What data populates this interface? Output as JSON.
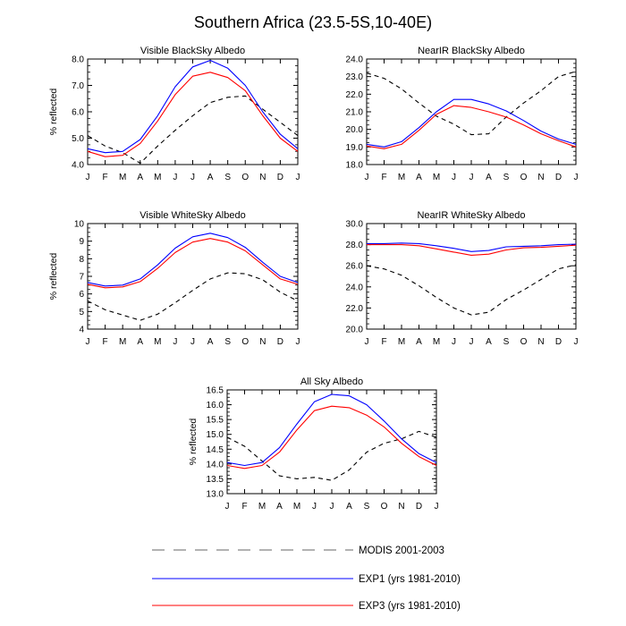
{
  "figure_title": "Southern Africa (23.5-5S,10-40E)",
  "legend": [
    {
      "label": "MODIS 2001-2003",
      "color": "#000000",
      "dash": "dashed"
    },
    {
      "label": "EXP1 (yrs 1981-2010)",
      "color": "#0000ff",
      "dash": "solid"
    },
    {
      "label": "EXP3 (yrs 1981-2010)",
      "color": "#ff0000",
      "dash": "solid"
    }
  ],
  "chart_data": [
    {
      "type": "line",
      "title": "Visible BlackSky Albedo",
      "ylabel": "% reflected",
      "ylim": [
        4.0,
        8.0
      ],
      "yticks": [
        "4.0",
        "5.0",
        "6.0",
        "7.0",
        "8.0"
      ],
      "categories": [
        "J",
        "F",
        "M",
        "A",
        "M",
        "J",
        "J",
        "A",
        "S",
        "O",
        "N",
        "D",
        "J"
      ],
      "series": [
        {
          "name": "MODIS 2001-2003",
          "values": [
            5.1,
            4.7,
            4.45,
            4.05,
            4.7,
            5.3,
            5.85,
            6.35,
            6.55,
            6.6,
            6.1,
            5.6,
            5.1
          ]
        },
        {
          "name": "EXP1 (yrs 1981-2010)",
          "values": [
            4.6,
            4.45,
            4.5,
            4.95,
            5.85,
            6.95,
            7.7,
            7.95,
            7.65,
            7.0,
            6.0,
            5.15,
            4.6
          ]
        },
        {
          "name": "EXP3 (yrs 1981-2010)",
          "values": [
            4.5,
            4.3,
            4.35,
            4.8,
            5.65,
            6.65,
            7.35,
            7.5,
            7.3,
            6.8,
            5.85,
            5.0,
            4.5
          ]
        }
      ]
    },
    {
      "type": "line",
      "title": "NearIR BlackSky Albedo",
      "ylabel": "",
      "ylim": [
        18.0,
        24.0
      ],
      "yticks": [
        "18.0",
        "19.0",
        "20.0",
        "21.0",
        "22.0",
        "23.0",
        "24.0"
      ],
      "categories": [
        "J",
        "F",
        "M",
        "A",
        "M",
        "J",
        "J",
        "A",
        "S",
        "O",
        "N",
        "D",
        "J"
      ],
      "series": [
        {
          "name": "MODIS 2001-2003",
          "values": [
            23.2,
            22.9,
            22.3,
            21.5,
            20.75,
            20.3,
            19.7,
            19.75,
            20.7,
            21.5,
            22.2,
            23.0,
            23.3
          ]
        },
        {
          "name": "EXP1 (yrs 1981-2010)",
          "values": [
            19.15,
            19.0,
            19.3,
            20.1,
            21.0,
            21.7,
            21.7,
            21.45,
            21.05,
            20.5,
            19.9,
            19.45,
            19.15
          ]
        },
        {
          "name": "EXP3 (yrs 1981-2010)",
          "values": [
            19.05,
            18.9,
            19.15,
            19.95,
            20.85,
            21.35,
            21.25,
            21.0,
            20.7,
            20.25,
            19.75,
            19.35,
            19.0
          ]
        }
      ]
    },
    {
      "type": "line",
      "title": "Visible WhiteSky Albedo",
      "ylabel": "% reflected",
      "ylim": [
        4,
        10
      ],
      "yticks": [
        "4",
        "5",
        "6",
        "7",
        "8",
        "9",
        "10"
      ],
      "categories": [
        "J",
        "F",
        "M",
        "A",
        "M",
        "J",
        "J",
        "A",
        "S",
        "O",
        "N",
        "D",
        "J"
      ],
      "series": [
        {
          "name": "MODIS 2001-2003",
          "values": [
            5.6,
            5.1,
            4.8,
            4.5,
            4.85,
            5.5,
            6.2,
            6.85,
            7.2,
            7.15,
            6.8,
            6.1,
            5.6
          ]
        },
        {
          "name": "EXP1 (yrs 1981-2010)",
          "values": [
            6.65,
            6.45,
            6.5,
            6.85,
            7.65,
            8.6,
            9.25,
            9.45,
            9.2,
            8.65,
            7.8,
            7.0,
            6.65
          ]
        },
        {
          "name": "EXP3 (yrs 1981-2010)",
          "values": [
            6.55,
            6.35,
            6.4,
            6.7,
            7.45,
            8.35,
            8.95,
            9.15,
            8.95,
            8.45,
            7.65,
            6.85,
            6.55
          ]
        }
      ]
    },
    {
      "type": "line",
      "title": "NearIR WhiteSky Albedo",
      "ylabel": "",
      "ylim": [
        20.0,
        30.0
      ],
      "yticks": [
        "20.0",
        "22.0",
        "24.0",
        "26.0",
        "28.0",
        "30.0"
      ],
      "categories": [
        "J",
        "F",
        "M",
        "A",
        "M",
        "J",
        "J",
        "A",
        "S",
        "O",
        "N",
        "D",
        "J"
      ],
      "series": [
        {
          "name": "MODIS 2001-2003",
          "values": [
            26.0,
            25.7,
            25.1,
            24.1,
            23.0,
            22.0,
            21.35,
            21.6,
            22.8,
            23.7,
            24.7,
            25.7,
            26.1
          ]
        },
        {
          "name": "EXP1 (yrs 1981-2010)",
          "values": [
            28.1,
            28.1,
            28.15,
            28.1,
            27.9,
            27.65,
            27.35,
            27.45,
            27.8,
            27.85,
            27.9,
            28.0,
            28.05
          ]
        },
        {
          "name": "EXP3 (yrs 1981-2010)",
          "values": [
            28.0,
            28.0,
            28.0,
            27.9,
            27.6,
            27.3,
            27.0,
            27.1,
            27.5,
            27.7,
            27.75,
            27.85,
            27.95
          ]
        }
      ]
    },
    {
      "type": "line",
      "title": "All Sky Albedo",
      "ylabel": "% reflected",
      "ylim": [
        13.0,
        16.5
      ],
      "yticks": [
        "13.0",
        "13.5",
        "14.0",
        "14.5",
        "15.0",
        "15.5",
        "16.0",
        "16.5"
      ],
      "categories": [
        "J",
        "F",
        "M",
        "A",
        "M",
        "J",
        "J",
        "A",
        "S",
        "O",
        "N",
        "D",
        "J"
      ],
      "series": [
        {
          "name": "MODIS 2001-2003",
          "values": [
            14.9,
            14.6,
            14.1,
            13.6,
            13.5,
            13.55,
            13.45,
            13.8,
            14.4,
            14.7,
            14.85,
            15.1,
            14.9
          ]
        },
        {
          "name": "EXP1 (yrs 1981-2010)",
          "values": [
            14.05,
            13.95,
            14.05,
            14.55,
            15.35,
            16.1,
            16.35,
            16.3,
            16.0,
            15.45,
            14.85,
            14.35,
            14.05
          ]
        },
        {
          "name": "EXP3 (yrs 1981-2010)",
          "values": [
            13.95,
            13.85,
            13.95,
            14.4,
            15.15,
            15.8,
            15.95,
            15.9,
            15.65,
            15.25,
            14.7,
            14.25,
            13.95
          ]
        }
      ]
    }
  ]
}
